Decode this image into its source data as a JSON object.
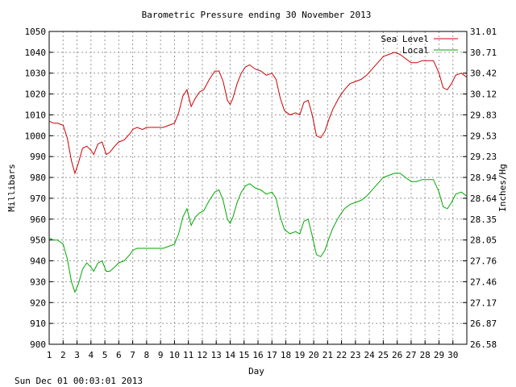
{
  "chart_data": {
    "type": "line",
    "title": "Barometric Pressure ending 30 November 2013",
    "xlabel": "Day",
    "ylabel": "Millibars",
    "y2label": "Inches/Hg",
    "footer": "Sun Dec 01 00:03:01 2013",
    "xlim": [
      1,
      31
    ],
    "ylim": [
      900,
      1050
    ],
    "x_ticks": [
      1,
      2,
      3,
      4,
      5,
      6,
      7,
      8,
      9,
      10,
      11,
      12,
      13,
      14,
      15,
      16,
      17,
      18,
      19,
      20,
      21,
      22,
      23,
      24,
      25,
      26,
      27,
      28,
      29,
      30
    ],
    "y_ticks": [
      900,
      910,
      920,
      930,
      940,
      950,
      960,
      970,
      980,
      990,
      1000,
      1010,
      1020,
      1030,
      1040,
      1050
    ],
    "y2_ticks": [
      "26.58",
      "26.87",
      "27.17",
      "27.46",
      "27.76",
      "28.05",
      "28.35",
      "28.64",
      "28.94",
      "29.23",
      "29.53",
      "29.83",
      "30.12",
      "30.42",
      "30.71",
      "31.01"
    ],
    "grid": true,
    "legend_position": "top-right",
    "series": [
      {
        "name": "Sea Level",
        "color": "#cc0000",
        "x": [
          1.0,
          1.3,
          1.6,
          2.0,
          2.3,
          2.6,
          2.85,
          3.1,
          3.4,
          3.7,
          4.0,
          4.2,
          4.5,
          4.8,
          5.1,
          5.35,
          5.7,
          6.0,
          6.4,
          6.8,
          7.0,
          7.3,
          7.7,
          8.0,
          8.4,
          8.8,
          9.2,
          9.6,
          10.0,
          10.3,
          10.6,
          10.9,
          11.2,
          11.5,
          11.8,
          12.1,
          12.5,
          12.9,
          13.2,
          13.5,
          13.8,
          14.0,
          14.2,
          14.5,
          14.8,
          15.1,
          15.4,
          15.8,
          16.2,
          16.6,
          17.0,
          17.3,
          17.6,
          17.9,
          18.3,
          18.7,
          19.0,
          19.3,
          19.6,
          19.9,
          20.2,
          20.5,
          20.8,
          21.1,
          21.4,
          21.8,
          22.2,
          22.6,
          23.0,
          23.4,
          23.8,
          24.2,
          24.6,
          25.0,
          25.4,
          25.8,
          26.2,
          26.6,
          27.0,
          27.4,
          27.8,
          28.2,
          28.6,
          29.0,
          29.3,
          29.6,
          29.9,
          30.2,
          30.6,
          31.0
        ],
        "values": [
          1007,
          1006,
          1006,
          1005,
          999,
          988,
          982,
          987,
          994,
          995,
          993,
          991,
          996,
          997,
          991,
          992,
          995,
          997,
          998,
          1001,
          1003,
          1004,
          1003,
          1004,
          1004,
          1004,
          1004,
          1005,
          1006,
          1011,
          1019,
          1022,
          1014,
          1018,
          1021,
          1022,
          1027,
          1031,
          1031,
          1026,
          1017,
          1015,
          1018,
          1025,
          1030,
          1033,
          1034,
          1032,
          1031,
          1029,
          1030,
          1027,
          1018,
          1012,
          1010,
          1011,
          1010,
          1016,
          1017,
          1010,
          1000,
          999,
          1002,
          1008,
          1013,
          1018,
          1022,
          1025,
          1026,
          1027,
          1029,
          1032,
          1035,
          1038,
          1039,
          1040,
          1039,
          1037,
          1035,
          1035,
          1036,
          1036,
          1036,
          1030,
          1023,
          1022,
          1025,
          1029,
          1030,
          1028
        ]
      },
      {
        "name": "Local",
        "color": "#00aa00",
        "x": [
          1.0,
          1.3,
          1.6,
          2.0,
          2.3,
          2.6,
          2.85,
          3.1,
          3.4,
          3.7,
          4.0,
          4.2,
          4.5,
          4.8,
          5.1,
          5.35,
          5.7,
          6.0,
          6.4,
          6.8,
          7.0,
          7.3,
          7.7,
          8.0,
          8.4,
          8.8,
          9.2,
          9.6,
          10.0,
          10.3,
          10.6,
          10.9,
          11.2,
          11.5,
          11.8,
          12.1,
          12.5,
          12.9,
          13.2,
          13.5,
          13.8,
          14.0,
          14.2,
          14.5,
          14.8,
          15.1,
          15.4,
          15.8,
          16.2,
          16.6,
          17.0,
          17.3,
          17.6,
          17.9,
          18.3,
          18.7,
          19.0,
          19.3,
          19.6,
          19.9,
          20.2,
          20.5,
          20.8,
          21.1,
          21.4,
          21.8,
          22.2,
          22.6,
          23.0,
          23.4,
          23.8,
          24.2,
          24.6,
          25.0,
          25.4,
          25.8,
          26.2,
          26.6,
          27.0,
          27.4,
          27.8,
          28.2,
          28.6,
          29.0,
          29.3,
          29.6,
          29.9,
          30.2,
          30.6,
          31.0
        ],
        "values": [
          951,
          950,
          950,
          948,
          941,
          930,
          925,
          929,
          936,
          939,
          937,
          935,
          939,
          940,
          935,
          935,
          937,
          939,
          940,
          943,
          945,
          946,
          946,
          946,
          946,
          946,
          946,
          947,
          948,
          953,
          961,
          965,
          957,
          961,
          963,
          964,
          969,
          973,
          974,
          969,
          960,
          958,
          961,
          968,
          973,
          976,
          977,
          975,
          974,
          972,
          973,
          970,
          961,
          955,
          953,
          954,
          953,
          959,
          960,
          952,
          943,
          942,
          945,
          951,
          956,
          961,
          965,
          967,
          968,
          969,
          971,
          974,
          977,
          980,
          981,
          982,
          982,
          980,
          978,
          978,
          979,
          979,
          979,
          973,
          966,
          965,
          968,
          972,
          973,
          971
        ]
      }
    ]
  }
}
